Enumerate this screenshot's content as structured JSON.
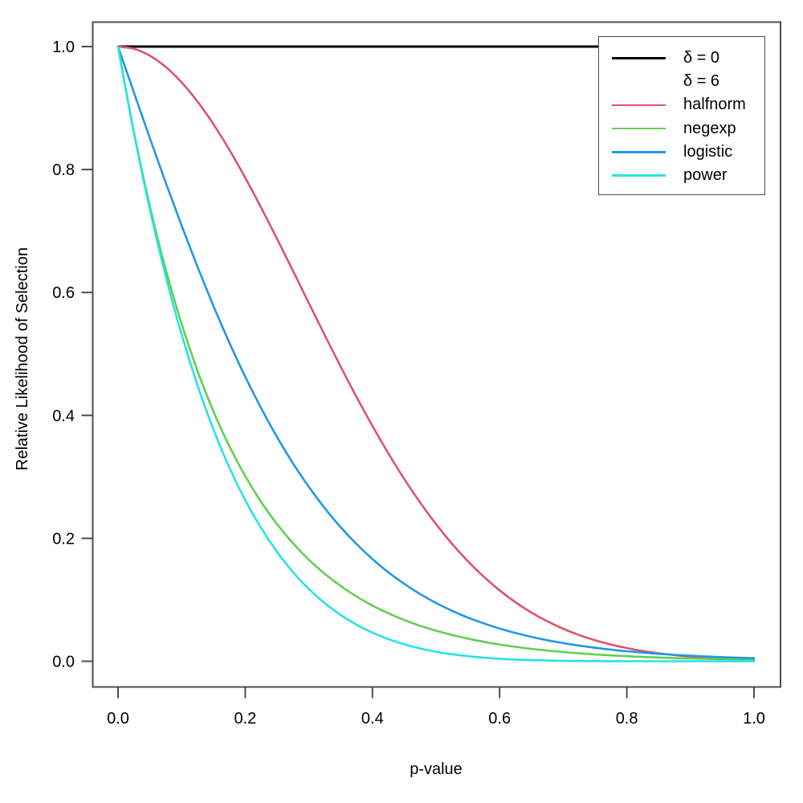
{
  "chart_data": {
    "type": "line",
    "title": "",
    "xlabel": "p-value",
    "ylabel": "Relative Likelihood of Selection",
    "xlim": [
      0,
      1
    ],
    "ylim": [
      0,
      1
    ],
    "grid": false,
    "x_ticks": {
      "values": [
        0,
        0.2,
        0.4,
        0.6,
        0.8,
        1.0
      ],
      "labels": [
        "0.0",
        "0.2",
        "0.4",
        "0.6",
        "0.8",
        "1.0"
      ]
    },
    "y_ticks": {
      "values": [
        0,
        0.2,
        0.4,
        0.6,
        0.8,
        1.0
      ],
      "labels": [
        "0.0",
        "0.2",
        "0.4",
        "0.6",
        "0.8",
        "1.0"
      ]
    },
    "x": [
      0,
      0.025,
      0.05,
      0.075,
      0.1,
      0.125,
      0.15,
      0.175,
      0.2,
      0.225,
      0.25,
      0.275,
      0.3,
      0.325,
      0.35,
      0.375,
      0.4,
      0.425,
      0.45,
      0.475,
      0.5,
      0.525,
      0.55,
      0.575,
      0.6,
      0.625,
      0.65,
      0.675,
      0.7,
      0.725,
      0.75,
      0.775,
      0.8,
      0.825,
      0.85,
      0.875,
      0.9,
      0.925,
      0.95,
      0.975,
      1
    ],
    "series": [
      {
        "name": "delta = 0",
        "legend_label": "δ = 0",
        "color": "#000000",
        "values": [
          1,
          1,
          1,
          1,
          1,
          1,
          1,
          1,
          1,
          1,
          1,
          1,
          1,
          1,
          1,
          1,
          1,
          1,
          1,
          1,
          1,
          1,
          1,
          1,
          1,
          1,
          1,
          1,
          1,
          1,
          1,
          1,
          1,
          1,
          1,
          1,
          1,
          1,
          1,
          1,
          1
        ]
      },
      {
        "name": "halfnorm (delta = 6)",
        "legend_label": "halfnorm",
        "color": "#DF536B",
        "values": [
          1,
          0.9963,
          0.9851,
          0.9668,
          0.9418,
          0.9105,
          0.8737,
          0.8321,
          0.7866,
          0.738,
          0.6873,
          0.6353,
          0.5827,
          0.5306,
          0.4795,
          0.4301,
          0.3829,
          0.3383,
          0.2967,
          0.2583,
          0.2231,
          0.1913,
          0.1629,
          0.1376,
          0.1153,
          0.096,
          0.0792,
          0.065,
          0.0529,
          0.0427,
          0.0342,
          0.0272,
          0.0215,
          0.0168,
          0.0131,
          0.0101,
          0.0077,
          0.0059,
          0.0045,
          0.0033,
          0.0025
        ]
      },
      {
        "name": "negexp (delta = 6)",
        "legend_label": "negexp",
        "color": "#61D04F",
        "values": [
          1,
          0.8607,
          0.7408,
          0.6376,
          0.5488,
          0.4724,
          0.4066,
          0.3499,
          0.3012,
          0.2592,
          0.2231,
          0.1921,
          0.1653,
          0.1423,
          0.1225,
          0.1054,
          0.0907,
          0.0781,
          0.0672,
          0.0578,
          0.0498,
          0.0429,
          0.0369,
          0.0317,
          0.0273,
          0.0235,
          0.0202,
          0.0174,
          0.015,
          0.0129,
          0.0111,
          0.0096,
          0.0082,
          0.0071,
          0.0061,
          0.0052,
          0.0045,
          0.0039,
          0.0033,
          0.0029,
          0.0025
        ]
      },
      {
        "name": "logistic (delta = 6)",
        "legend_label": "logistic",
        "color": "#2297E6",
        "values": [
          1,
          0.9251,
          0.8511,
          0.7787,
          0.7087,
          0.6416,
          0.5781,
          0.5184,
          0.4629,
          0.4117,
          0.3648,
          0.3222,
          0.2837,
          0.2491,
          0.2182,
          0.1907,
          0.1663,
          0.1448,
          0.1259,
          0.1094,
          0.0949,
          0.0822,
          0.0711,
          0.0616,
          0.0532,
          0.046,
          0.0397,
          0.0342,
          0.0296,
          0.0255,
          0.022,
          0.0189,
          0.0163,
          0.0141,
          0.0121,
          0.0104,
          0.009,
          0.0078,
          0.0067,
          0.0057,
          0.005
        ]
      },
      {
        "name": "power (delta = 6)",
        "legend_label": "power",
        "color": "#28E2E5",
        "values": [
          1,
          0.8591,
          0.7351,
          0.6264,
          0.5314,
          0.4488,
          0.3771,
          0.3153,
          0.2621,
          0.2167,
          0.178,
          0.1452,
          0.1176,
          0.0946,
          0.0754,
          0.0596,
          0.0467,
          0.0362,
          0.0277,
          0.0209,
          0.0156,
          0.0115,
          0.0083,
          0.0059,
          0.0041,
          0.0028,
          0.0018,
          0.0012,
          0.0007,
          0.0004,
          0.0002,
          0.0001,
          0.0001,
          0,
          0,
          0,
          0,
          0,
          0,
          0,
          0
        ]
      }
    ],
    "legend": {
      "position": "top-right",
      "items": [
        {
          "label": "δ = 0",
          "color": "#000000"
        },
        {
          "label": "δ = 6",
          "color": null
        },
        {
          "label": "halfnorm",
          "color": "#DF536B"
        },
        {
          "label": "negexp",
          "color": "#61D04F"
        },
        {
          "label": "logistic",
          "color": "#2297E6"
        },
        {
          "label": "power",
          "color": "#28E2E5"
        }
      ]
    }
  },
  "colors": {
    "axis": "#4d4d4d",
    "text": "#000000",
    "background": "#ffffff"
  }
}
